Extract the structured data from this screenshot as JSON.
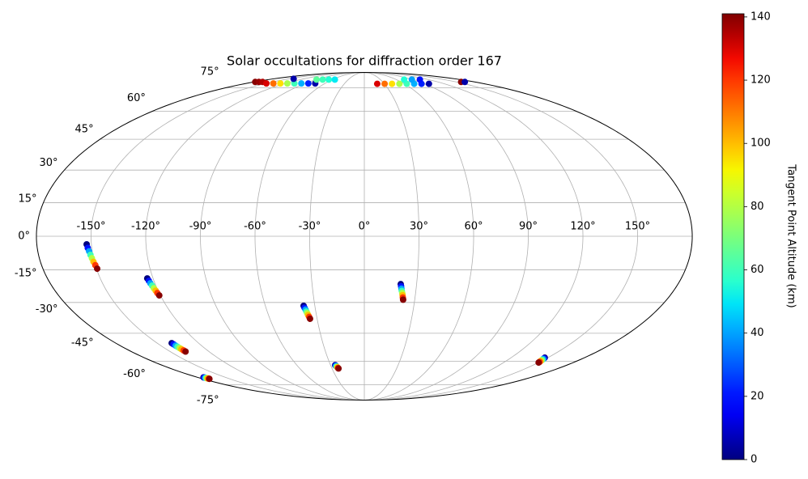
{
  "chart_data": {
    "type": "scatter",
    "projection": "mollweide",
    "title": "Solar occultations for diffraction order 167",
    "colorbar_label": "Tangent Point Altitude (km)",
    "colormap": "jet",
    "clim": [
      0,
      141
    ],
    "cticks": [
      0,
      20,
      40,
      60,
      80,
      100,
      120,
      140
    ],
    "grid": true,
    "xlim": [
      -180,
      180
    ],
    "ylim": [
      -90,
      90
    ],
    "xticks": [
      {
        "value": -150,
        "label": "-150°"
      },
      {
        "value": -120,
        "label": "-120°"
      },
      {
        "value": -90,
        "label": "-90°"
      },
      {
        "value": -60,
        "label": "-60°"
      },
      {
        "value": -30,
        "label": "-30°"
      },
      {
        "value": 0,
        "label": "0°"
      },
      {
        "value": 30,
        "label": "30°"
      },
      {
        "value": 60,
        "label": "60°"
      },
      {
        "value": 90,
        "label": "90°"
      },
      {
        "value": 120,
        "label": "120°"
      },
      {
        "value": 150,
        "label": "150°"
      }
    ],
    "yticks": [
      {
        "value": -75,
        "label": "-75°"
      },
      {
        "value": -60,
        "label": "-60°"
      },
      {
        "value": -45,
        "label": "-45°"
      },
      {
        "value": -30,
        "label": "-30°"
      },
      {
        "value": -15,
        "label": "-15°"
      },
      {
        "value": 0,
        "label": "0°"
      },
      {
        "value": 15,
        "label": "15°"
      },
      {
        "value": 30,
        "label": "30°"
      },
      {
        "value": 45,
        "label": "45°"
      },
      {
        "value": 60,
        "label": "60°"
      },
      {
        "value": 75,
        "label": "75°"
      }
    ],
    "x": [
      -152.6,
      -152.2,
      -151.7,
      -151.3,
      -150.9,
      -150.5,
      -150.0,
      -149.6,
      -123.3,
      -122.9,
      -122.6,
      -122.2,
      -121.8,
      -121.4,
      -121.1,
      -120.7,
      -139.5,
      -139.3,
      -139.1,
      -138.9,
      -138.7,
      -138.5,
      -138.3,
      -138.1,
      -173.5,
      -173.4,
      -173.2,
      -173.1,
      -173.0,
      -172.9,
      -172.7,
      -172.6,
      -36.8,
      -36.5,
      -36.1,
      -35.8,
      -35.5,
      -35.2,
      -34.8,
      -34.5,
      -25.9,
      -25.6,
      -25.4,
      -25.1,
      -24.8,
      -24.5,
      -24.3,
      -24.0,
      20.9,
      21.2,
      21.5,
      21.8,
      22.2,
      22.5,
      22.8,
      23.1,
      147.5,
      147.9,
      148.3,
      148.7,
      149.0,
      149.4,
      149.8,
      150.2,
      -178,
      -172,
      -166,
      -149,
      -138.4,
      -127.7,
      -117.1,
      -106.4,
      -95.8,
      -85.2,
      -74.7,
      -89.5,
      -78,
      -66.5,
      -55.2,
      -140,
      19.3,
      30.4,
      41.4,
      52.5,
      63.5,
      74.6,
      85.6,
      96.7,
      74.5,
      89,
      104,
      158,
      164
    ],
    "y": [
      -3.6,
      -5.2,
      -6.7,
      -8.3,
      -9.8,
      -11.4,
      -12.9,
      -14.5,
      -18.9,
      -20.0,
      -21.1,
      -22.2,
      -23.4,
      -24.5,
      -25.6,
      -26.7,
      -50.1,
      -50.7,
      -51.4,
      -52.0,
      -52.7,
      -53.3,
      -54.0,
      -54.6,
      -69.9,
      -70.0,
      -70.2,
      -70.3,
      -70.5,
      -70.6,
      -70.8,
      -70.9,
      -31.6,
      -32.5,
      -33.4,
      -34.3,
      -35.1,
      -36.0,
      -36.9,
      -37.8,
      -62.3,
      -62.6,
      -62.9,
      -63.2,
      -63.4,
      -63.7,
      -64.0,
      -64.3,
      -21.5,
      -22.5,
      -23.6,
      -24.6,
      -25.6,
      -26.6,
      -27.7,
      -28.7,
      -58.0,
      -58.4,
      -58.8,
      -59.2,
      -59.6,
      -60.0,
      -60.4,
      -60.8,
      79.5,
      79.5,
      79.5,
      78.3,
      78.3,
      78.3,
      78.3,
      78.3,
      78.3,
      78.3,
      78.3,
      81.5,
      81.5,
      81.5,
      81.5,
      82.2,
      78,
      78,
      78,
      78,
      78,
      78,
      78,
      78,
      81.5,
      81.5,
      81.5,
      79.5,
      79.5
    ],
    "c": [
      0,
      20,
      40,
      60,
      80,
      100,
      120,
      140,
      0,
      20,
      40,
      60,
      80,
      100,
      120,
      140,
      0,
      20,
      40,
      60,
      80,
      100,
      120,
      140,
      0,
      20,
      40,
      60,
      80,
      100,
      120,
      140,
      0,
      20,
      40,
      60,
      80,
      100,
      120,
      140,
      0,
      20,
      40,
      60,
      80,
      100,
      120,
      140,
      0,
      20,
      40,
      60,
      80,
      100,
      120,
      140,
      0,
      20,
      40,
      60,
      80,
      100,
      120,
      140,
      140,
      138,
      135,
      130,
      112,
      95,
      78,
      60,
      42,
      22,
      5,
      65,
      60,
      55,
      50,
      5,
      130,
      112,
      95,
      78,
      60,
      42,
      22,
      5,
      55,
      40,
      20,
      140,
      5
    ]
  }
}
